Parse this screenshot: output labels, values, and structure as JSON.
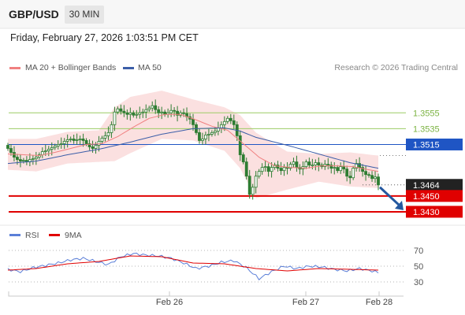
{
  "header": {
    "symbol": "GBP/USD",
    "interval": "30 MIN",
    "datetime": "Friday, February 27, 2026 1:03:51 PM CET"
  },
  "legend": {
    "ma20_label": "MA 20 + Bollinger Bands",
    "ma50_label": "MA 50",
    "rsi_label": "RSI",
    "ma9_label": "9MA",
    "copyright": "Research © 2026 Trading Central"
  },
  "colors": {
    "ma20": "#f08080",
    "bollinger_band": "#fadada",
    "ma50": "#3c5ea8",
    "candle": "#2e7d32",
    "resistance_line": "#9ccc65",
    "pivot_line": "#1f55c4",
    "support_line": "#e00000",
    "rsi": "#5b7fd8",
    "rsi_ma": "#e00000",
    "forecast_arrow": "#24589f"
  },
  "chart_data": [
    {
      "type": "candlestick",
      "title": "GBP/USD",
      "ylim": [
        1.3419,
        1.3601
      ],
      "x_ticks": [
        "Feb 26",
        "Feb 27",
        "Feb 28"
      ],
      "last_price": 1.3464,
      "series": [
        {
          "name": "GBP/USD",
          "x": [
            1,
            2,
            3,
            4,
            5,
            6,
            7,
            8,
            9,
            10,
            11,
            12,
            13,
            14,
            15,
            16,
            17,
            18,
            19,
            20,
            21,
            22,
            23,
            24,
            25,
            26,
            27,
            28,
            29,
            30,
            31,
            32,
            33,
            34,
            35,
            36,
            37,
            38,
            39,
            40,
            41,
            42,
            43,
            44,
            45,
            46,
            47,
            48,
            49,
            50,
            51,
            52,
            53,
            54,
            55,
            56,
            57,
            58,
            59,
            60,
            61,
            62,
            63,
            64,
            65,
            66,
            67,
            68,
            69,
            70,
            71,
            72,
            73,
            74,
            75,
            76,
            77,
            78,
            79,
            80,
            81,
            82,
            83,
            84,
            85,
            86,
            87,
            88,
            89,
            90,
            91,
            92,
            93,
            94,
            95,
            96,
            97,
            98,
            99,
            100,
            101,
            102,
            103,
            104,
            105,
            106,
            107,
            108,
            109,
            110,
            111,
            112,
            113,
            114,
            115,
            116,
            117,
            118,
            119
          ],
          "close": [
            1.351,
            1.3505,
            1.3499,
            1.3496,
            1.3494,
            1.3495,
            1.3493,
            1.3496,
            1.3497,
            1.3499,
            1.3502,
            1.3506,
            1.3507,
            1.3509,
            1.3511,
            1.3513,
            1.3515,
            1.3516,
            1.3519,
            1.3521,
            1.3522,
            1.352,
            1.3521,
            1.3522,
            1.352,
            1.3516,
            1.3512,
            1.351,
            1.3514,
            1.3519,
            1.3523,
            1.3526,
            1.353,
            1.354,
            1.3556,
            1.356,
            1.3557,
            1.3555,
            1.3553,
            1.3555,
            1.3552,
            1.3553,
            1.3555,
            1.3556,
            1.3559,
            1.3561,
            1.3564,
            1.3559,
            1.3555,
            1.3556,
            1.3553,
            1.3555,
            1.3558,
            1.3557,
            1.3552,
            1.3555,
            1.3554,
            1.355,
            1.3547,
            1.354,
            1.353,
            1.352,
            1.3522,
            1.3527,
            1.3528,
            1.353,
            1.3532,
            1.3536,
            1.354,
            1.3544,
            1.3548,
            1.3545,
            1.354,
            1.3526,
            1.3502,
            1.3493,
            1.3475,
            1.3452,
            1.3461,
            1.3475,
            1.3481,
            1.3486,
            1.3487,
            1.3481,
            1.3486,
            1.3489,
            1.3485,
            1.3482,
            1.3486,
            1.3485,
            1.349,
            1.3493,
            1.3486,
            1.3484,
            1.3487,
            1.3493,
            1.3489,
            1.3489,
            1.3492,
            1.3489,
            1.3487,
            1.349,
            1.3489,
            1.3485,
            1.3486,
            1.3482,
            1.3487,
            1.3484,
            1.3475,
            1.3473,
            1.3485,
            1.3491,
            1.3486,
            1.3481,
            1.3477,
            1.3476,
            1.3472,
            1.3474,
            1.3464
          ]
        },
        {
          "name": "MA 20",
          "x": [
            1,
            6,
            11,
            16,
            21,
            26,
            31,
            36,
            41,
            46,
            51,
            56,
            61,
            66,
            71,
            76,
            81,
            86,
            91,
            96,
            101,
            106,
            111,
            116,
            119
          ],
          "y": [
            1.3503,
            1.3502,
            1.3501,
            1.3505,
            1.351,
            1.3515,
            1.3516,
            1.3525,
            1.3537,
            1.3548,
            1.3553,
            1.3553,
            1.3546,
            1.3538,
            1.3533,
            1.3516,
            1.3499,
            1.3488,
            1.3486,
            1.3485,
            1.3488,
            1.3488,
            1.3487,
            1.3483,
            1.3481
          ]
        },
        {
          "name": "MA 50",
          "x": [
            1,
            10,
            20,
            30,
            40,
            50,
            60,
            70,
            75,
            80,
            90,
            100,
            110,
            119
          ],
          "y": [
            1.3491,
            1.3494,
            1.3502,
            1.3509,
            1.3518,
            1.3528,
            1.3535,
            1.3536,
            1.3532,
            1.3524,
            1.3514,
            1.3503,
            1.3492,
            1.3485
          ]
        },
        {
          "name": "Bollinger upper",
          "x": [
            1,
            10,
            20,
            30,
            35,
            40,
            50,
            60,
            70,
            75,
            80,
            90,
            100,
            110,
            119
          ],
          "y": [
            1.3522,
            1.3522,
            1.3531,
            1.3533,
            1.3562,
            1.3575,
            1.3583,
            1.3572,
            1.3562,
            1.3552,
            1.353,
            1.3506,
            1.3503,
            1.3505,
            1.3501
          ]
        },
        {
          "name": "Bollinger lower",
          "x": [
            1,
            10,
            20,
            30,
            35,
            40,
            50,
            60,
            70,
            75,
            80,
            90,
            100,
            110,
            119
          ],
          "y": [
            1.3483,
            1.3481,
            1.3491,
            1.3493,
            1.3494,
            1.3504,
            1.3522,
            1.352,
            1.3507,
            1.3485,
            1.3447,
            1.3458,
            1.3468,
            1.3462,
            1.346
          ]
        }
      ],
      "levels": [
        {
          "value": 1.3555,
          "label": "1.3555",
          "kind": "resistance"
        },
        {
          "value": 1.3535,
          "label": "1.3535",
          "kind": "resistance"
        },
        {
          "value": 1.3515,
          "label": "1.3515",
          "kind": "pivot"
        },
        {
          "value": 1.3464,
          "label": "1.3464",
          "kind": "last_price"
        },
        {
          "value": 1.345,
          "label": "1.3450",
          "kind": "support"
        },
        {
          "value": 1.343,
          "label": "1.3430",
          "kind": "support"
        }
      ],
      "forecast": {
        "from": 1.3461,
        "to": 1.3432,
        "direction": "down"
      }
    },
    {
      "type": "line",
      "title": "RSI",
      "ylim": [
        22,
        76
      ],
      "y_ticks": [
        70,
        50,
        30
      ],
      "series": [
        {
          "name": "RSI",
          "x": [
            1,
            5,
            9,
            13,
            17,
            21,
            25,
            29,
            33,
            37,
            41,
            45,
            49,
            53,
            57,
            61,
            65,
            69,
            73,
            77,
            81,
            85,
            89,
            93,
            97,
            101,
            105,
            109,
            113,
            117,
            119
          ],
          "y": [
            46,
            43,
            48,
            51,
            54,
            58,
            60,
            56,
            52,
            62,
            66,
            64,
            63,
            60,
            54,
            47,
            50,
            55,
            57,
            48,
            34,
            43,
            50,
            47,
            50,
            49,
            46,
            44,
            47,
            44,
            42
          ]
        },
        {
          "name": "9MA",
          "x": [
            1,
            10,
            20,
            30,
            40,
            50,
            60,
            70,
            80,
            90,
            100,
            110,
            119
          ],
          "y": [
            45,
            47,
            53,
            56,
            63,
            62,
            54,
            53,
            47,
            44,
            47,
            46,
            45
          ]
        }
      ]
    }
  ]
}
